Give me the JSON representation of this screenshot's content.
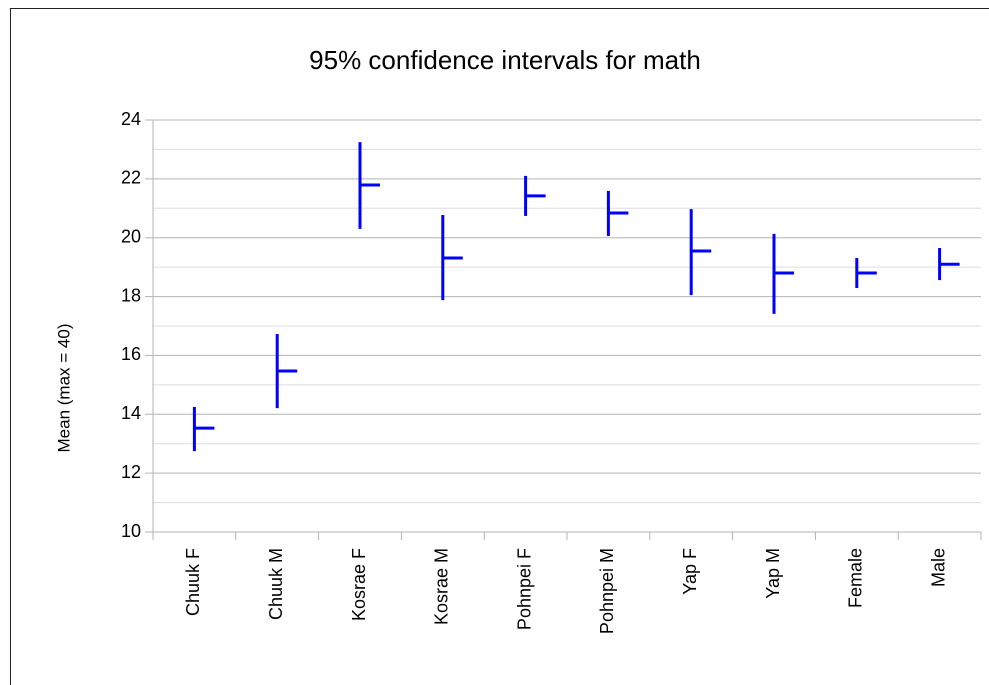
{
  "chart_data": {
    "type": "interval",
    "title": "95% confidence intervals for math",
    "ylabel": "Mean (max = 40)",
    "categories": [
      "Chuuk F",
      "Chuuk M",
      "Kosrae F",
      "Kosrae M",
      "Pohnpei F",
      "Pohnpei M",
      "Yap F",
      "Yap M",
      "Female",
      "Male"
    ],
    "series": [
      {
        "color": "#0000ff",
        "values": [
          13.53,
          15.47,
          21.79,
          19.31,
          21.42,
          20.84,
          19.55,
          18.8,
          18.8,
          19.1
        ],
        "low": [
          12.75,
          14.21,
          20.3,
          17.88,
          20.74,
          20.06,
          18.05,
          17.41,
          18.29,
          18.56
        ],
        "high": [
          14.25,
          16.73,
          23.25,
          20.77,
          22.1,
          21.59,
          20.97,
          20.13,
          19.31,
          19.65
        ]
      }
    ],
    "ylim": [
      10,
      24
    ],
    "yticks": [
      10,
      12,
      14,
      16,
      18,
      20,
      22,
      24
    ],
    "minor_yticks": [
      11,
      13,
      15,
      17,
      19,
      21,
      23
    ],
    "grid": true
  }
}
